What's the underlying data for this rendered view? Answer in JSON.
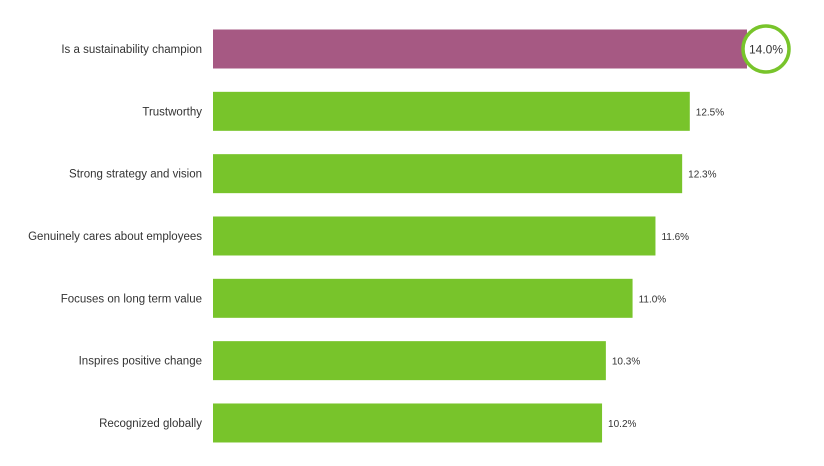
{
  "chart_data": {
    "type": "bar",
    "orientation": "horizontal",
    "categories": [
      "Is a sustainability champion",
      "Trustworthy",
      "Strong strategy and vision",
      "Genuinely cares about employees",
      "Focuses on long term value",
      "Inspires positive change",
      "Recognized globally"
    ],
    "values": [
      14.0,
      12.5,
      12.3,
      11.6,
      11.0,
      10.3,
      10.2
    ],
    "value_labels": [
      "14.0%",
      "12.5%",
      "12.3%",
      "11.6%",
      "11.0%",
      "10.3%",
      "10.2%"
    ],
    "highlight_index": 0,
    "xlim": [
      0,
      14.0
    ],
    "grid": false,
    "legend": "none",
    "colors": {
      "bar": "#78c42b",
      "highlight_bar": "#a65983",
      "highlight_ring": "#78c42b"
    }
  }
}
